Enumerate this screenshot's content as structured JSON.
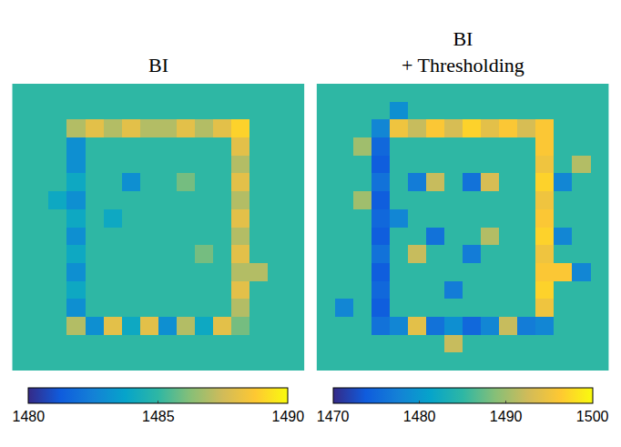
{
  "chart_data": [
    {
      "type": "heatmap",
      "title": "BI",
      "clim": [
        1480,
        1490
      ],
      "cticks": [
        1480,
        1485,
        1490
      ],
      "z": [
        [
          1485,
          1485,
          1485,
          1485,
          1485,
          1485,
          1485,
          1485,
          1485,
          1485,
          1485,
          1485,
          1485,
          1485,
          1485,
          1485
        ],
        [
          1485,
          1485,
          1485,
          1485,
          1485,
          1485,
          1485,
          1485,
          1485,
          1485,
          1485,
          1485,
          1485,
          1485,
          1485,
          1485
        ],
        [
          1485,
          1485,
          1485,
          1487,
          1488,
          1487,
          1488,
          1487,
          1487,
          1488,
          1487,
          1488,
          1489,
          1485,
          1485,
          1485
        ],
        [
          1485,
          1485,
          1485,
          1483,
          1485,
          1485,
          1485,
          1485,
          1485,
          1485,
          1485,
          1485,
          1488,
          1485,
          1485,
          1485
        ],
        [
          1485,
          1485,
          1485,
          1483,
          1485,
          1485,
          1485,
          1485,
          1485,
          1485,
          1485,
          1485,
          1487,
          1485,
          1485,
          1485
        ],
        [
          1485,
          1485,
          1485,
          1484,
          1485,
          1485,
          1483,
          1485,
          1485,
          1486,
          1485,
          1485,
          1488,
          1485,
          1485,
          1485
        ],
        [
          1485,
          1485,
          1484,
          1483,
          1485,
          1485,
          1485,
          1485,
          1485,
          1485,
          1485,
          1485,
          1487,
          1485,
          1485,
          1485
        ],
        [
          1485,
          1485,
          1485,
          1484,
          1485,
          1484,
          1485,
          1485,
          1485,
          1485,
          1485,
          1485,
          1488,
          1485,
          1485,
          1485
        ],
        [
          1485,
          1485,
          1485,
          1483,
          1485,
          1485,
          1485,
          1485,
          1485,
          1485,
          1485,
          1485,
          1487,
          1485,
          1485,
          1485
        ],
        [
          1485,
          1485,
          1485,
          1484,
          1485,
          1485,
          1485,
          1485,
          1485,
          1485,
          1486,
          1485,
          1488,
          1485,
          1485,
          1485
        ],
        [
          1485,
          1485,
          1485,
          1483,
          1485,
          1485,
          1485,
          1485,
          1485,
          1485,
          1485,
          1485,
          1487,
          1487,
          1485,
          1485
        ],
        [
          1485,
          1485,
          1485,
          1484,
          1485,
          1485,
          1485,
          1485,
          1485,
          1485,
          1485,
          1485,
          1488,
          1485,
          1485,
          1485
        ],
        [
          1485,
          1485,
          1485,
          1483,
          1485,
          1485,
          1485,
          1485,
          1485,
          1485,
          1485,
          1485,
          1487,
          1485,
          1485,
          1485
        ],
        [
          1485,
          1485,
          1485,
          1487,
          1483,
          1488,
          1484,
          1488,
          1483,
          1487,
          1484,
          1488,
          1486,
          1485,
          1485,
          1485
        ],
        [
          1485,
          1485,
          1485,
          1485,
          1485,
          1485,
          1485,
          1485,
          1485,
          1485,
          1485,
          1485,
          1485,
          1485,
          1485,
          1485
        ],
        [
          1485,
          1485,
          1485,
          1485,
          1485,
          1485,
          1485,
          1485,
          1485,
          1485,
          1485,
          1485,
          1485,
          1485,
          1485,
          1485
        ]
      ]
    },
    {
      "type": "heatmap",
      "title": "BI + Thresholding",
      "clim": [
        1470,
        1500
      ],
      "cticks": [
        1470,
        1480,
        1490,
        1500
      ],
      "z": [
        [
          1485,
          1485,
          1485,
          1485,
          1485,
          1485,
          1485,
          1485,
          1485,
          1485,
          1485,
          1485,
          1485,
          1485,
          1485,
          1485
        ],
        [
          1485,
          1485,
          1485,
          1485,
          1479,
          1485,
          1485,
          1485,
          1485,
          1485,
          1485,
          1485,
          1485,
          1485,
          1485,
          1485
        ],
        [
          1485,
          1485,
          1485,
          1478,
          1495,
          1492,
          1496,
          1493,
          1497,
          1494,
          1496,
          1493,
          1496,
          1485,
          1485,
          1485
        ],
        [
          1485,
          1485,
          1490,
          1475,
          1485,
          1485,
          1485,
          1485,
          1485,
          1485,
          1485,
          1485,
          1496,
          1485,
          1485,
          1485
        ],
        [
          1485,
          1485,
          1485,
          1474,
          1485,
          1485,
          1485,
          1485,
          1485,
          1485,
          1485,
          1485,
          1495,
          1485,
          1491,
          1485
        ],
        [
          1485,
          1485,
          1485,
          1476,
          1485,
          1477,
          1492,
          1485,
          1476,
          1493,
          1485,
          1485,
          1497,
          1478,
          1485,
          1485
        ],
        [
          1485,
          1485,
          1490,
          1474,
          1485,
          1485,
          1485,
          1485,
          1485,
          1485,
          1485,
          1485,
          1495,
          1485,
          1485,
          1485
        ],
        [
          1485,
          1485,
          1485,
          1475,
          1478,
          1485,
          1485,
          1485,
          1485,
          1485,
          1485,
          1485,
          1496,
          1485,
          1485,
          1485
        ],
        [
          1485,
          1485,
          1485,
          1474,
          1485,
          1485,
          1476,
          1485,
          1485,
          1491,
          1485,
          1485,
          1497,
          1478,
          1485,
          1485
        ],
        [
          1485,
          1485,
          1485,
          1476,
          1485,
          1492,
          1485,
          1485,
          1477,
          1485,
          1485,
          1485,
          1495,
          1485,
          1485,
          1485
        ],
        [
          1485,
          1485,
          1485,
          1474,
          1485,
          1485,
          1485,
          1485,
          1485,
          1485,
          1485,
          1485,
          1496,
          1496,
          1478,
          1485
        ],
        [
          1485,
          1485,
          1485,
          1475,
          1485,
          1485,
          1485,
          1477,
          1485,
          1485,
          1485,
          1485,
          1497,
          1485,
          1485,
          1485
        ],
        [
          1485,
          1478,
          1485,
          1474,
          1485,
          1485,
          1485,
          1485,
          1485,
          1485,
          1485,
          1485,
          1495,
          1485,
          1485,
          1485
        ],
        [
          1485,
          1485,
          1485,
          1476,
          1478,
          1494,
          1476,
          1479,
          1475,
          1478,
          1492,
          1477,
          1478,
          1485,
          1485,
          1485
        ],
        [
          1485,
          1485,
          1485,
          1485,
          1485,
          1485,
          1485,
          1492,
          1485,
          1485,
          1485,
          1485,
          1485,
          1485,
          1485,
          1485
        ],
        [
          1485,
          1485,
          1485,
          1485,
          1485,
          1485,
          1485,
          1485,
          1485,
          1485,
          1485,
          1485,
          1485,
          1485,
          1485,
          1485
        ]
      ]
    }
  ]
}
